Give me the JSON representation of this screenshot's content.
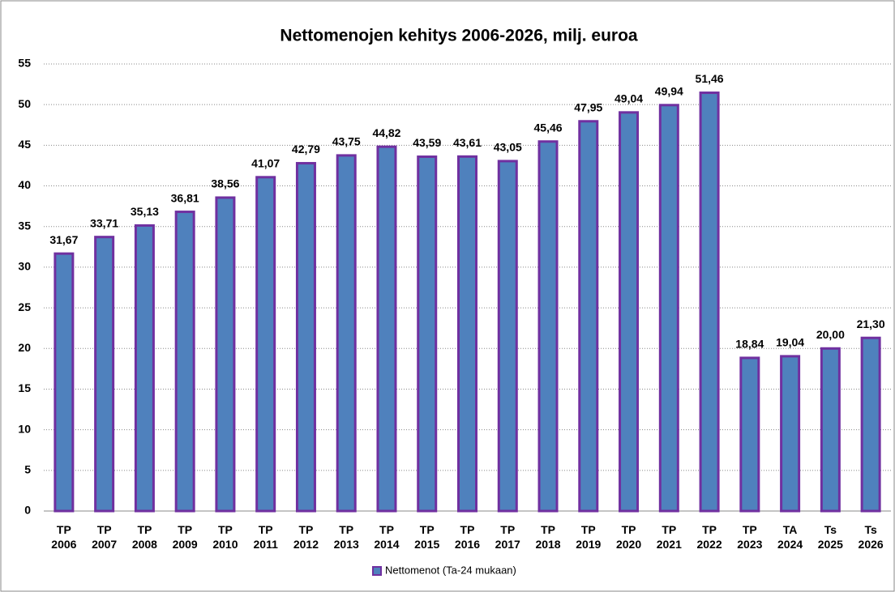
{
  "chart_data": {
    "type": "bar",
    "title": "Nettomenojen kehitys 2006-2026, milj. euroa",
    "categories": [
      "TP 2006",
      "TP 2007",
      "TP 2008",
      "TP 2009",
      "TP 2010",
      "TP 2011",
      "TP 2012",
      "TP 2013",
      "TP 2014",
      "TP 2015",
      "TP 2016",
      "TP 2017",
      "TP 2018",
      "TP 2019",
      "TP 2020",
      "TP 2021",
      "TP 2022",
      "TP 2023",
      "TA 2024",
      "Ts 2025",
      "Ts 2026"
    ],
    "series": [
      {
        "name": "Nettomenot (Ta-24 mukaan)",
        "color": "#4f81bd",
        "edge_color": "#7030a0",
        "values": [
          31.67,
          33.71,
          35.13,
          36.81,
          38.56,
          41.07,
          42.79,
          43.75,
          44.82,
          43.59,
          43.61,
          43.05,
          45.46,
          47.95,
          49.04,
          49.94,
          51.46,
          18.84,
          19.04,
          20.0,
          21.3
        ],
        "value_labels": [
          "31,67",
          "33,71",
          "35,13",
          "36,81",
          "38,56",
          "41,07",
          "42,79",
          "43,75",
          "44,82",
          "43,59",
          "43,61",
          "43,05",
          "45,46",
          "47,95",
          "49,04",
          "49,94",
          "51,46",
          "18,84",
          "19,04",
          "20,00",
          "21,30"
        ]
      }
    ],
    "ylim": [
      0,
      55
    ],
    "yticks": [
      0,
      5,
      10,
      15,
      20,
      25,
      30,
      35,
      40,
      45,
      50,
      55
    ],
    "grid": true,
    "legend": "bottom"
  }
}
